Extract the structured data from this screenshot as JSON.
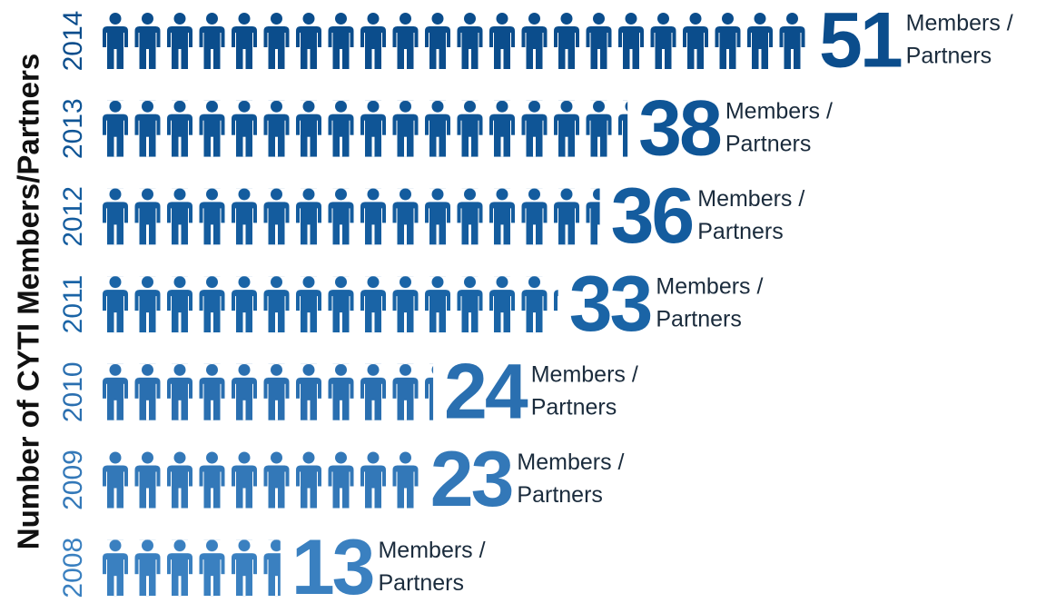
{
  "chart_data": {
    "type": "pictograph",
    "title": "Number of CYTI Members/Partners",
    "categories": [
      "2014",
      "2013",
      "2012",
      "2011",
      "2010",
      "2009",
      "2008"
    ],
    "values": [
      51,
      38,
      36,
      33,
      24,
      23,
      13
    ],
    "colors": [
      "#0b4d8c",
      "#0f5596",
      "#145c9e",
      "#1a64a6",
      "#2a6fb0",
      "#3378b8",
      "#3a80c0"
    ],
    "unit_label": [
      "Members /",
      "Partners"
    ]
  }
}
